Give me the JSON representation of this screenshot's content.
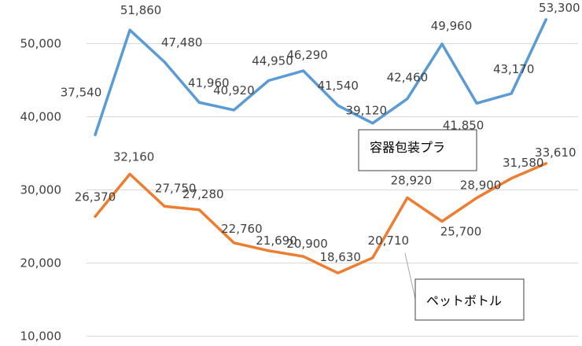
{
  "chart_data": {
    "type": "line",
    "title": "",
    "xlabel": "",
    "ylabel": "",
    "ylim": [
      10000,
      55000
    ],
    "yticks": [
      "10,000",
      "20,000",
      "30,000",
      "40,000",
      "50,000"
    ],
    "ytick_values": [
      10000,
      20000,
      30000,
      40000,
      50000
    ],
    "grid": true,
    "series": [
      {
        "name": "容器包装プラ",
        "color": "#5b9bd5",
        "values": [
          37540,
          51860,
          47480,
          41960,
          40920,
          44950,
          46290,
          41540,
          39120,
          42460,
          49960,
          41850,
          43170,
          53300
        ],
        "labels": [
          "37,540",
          "51,860",
          "47,480",
          "41,960",
          "40,920",
          "44,950",
          "46,290",
          "41,540",
          "39,120",
          "42,460",
          "49,960",
          "41,850",
          "43,170",
          "53,300"
        ]
      },
      {
        "name": "ペットボトル",
        "color": "#ed7d31",
        "values": [
          26370,
          32160,
          27750,
          27280,
          22760,
          21690,
          20900,
          18630,
          20710,
          28920,
          25700,
          28900,
          31580,
          33610
        ],
        "labels": [
          "26,370",
          "32,160",
          "27,750",
          "27,280",
          "22,760",
          "21,690",
          "20,900",
          "18,630",
          "20,710",
          "28,920",
          "25,700",
          "28,900",
          "31,580",
          "33,610"
        ]
      }
    ]
  }
}
